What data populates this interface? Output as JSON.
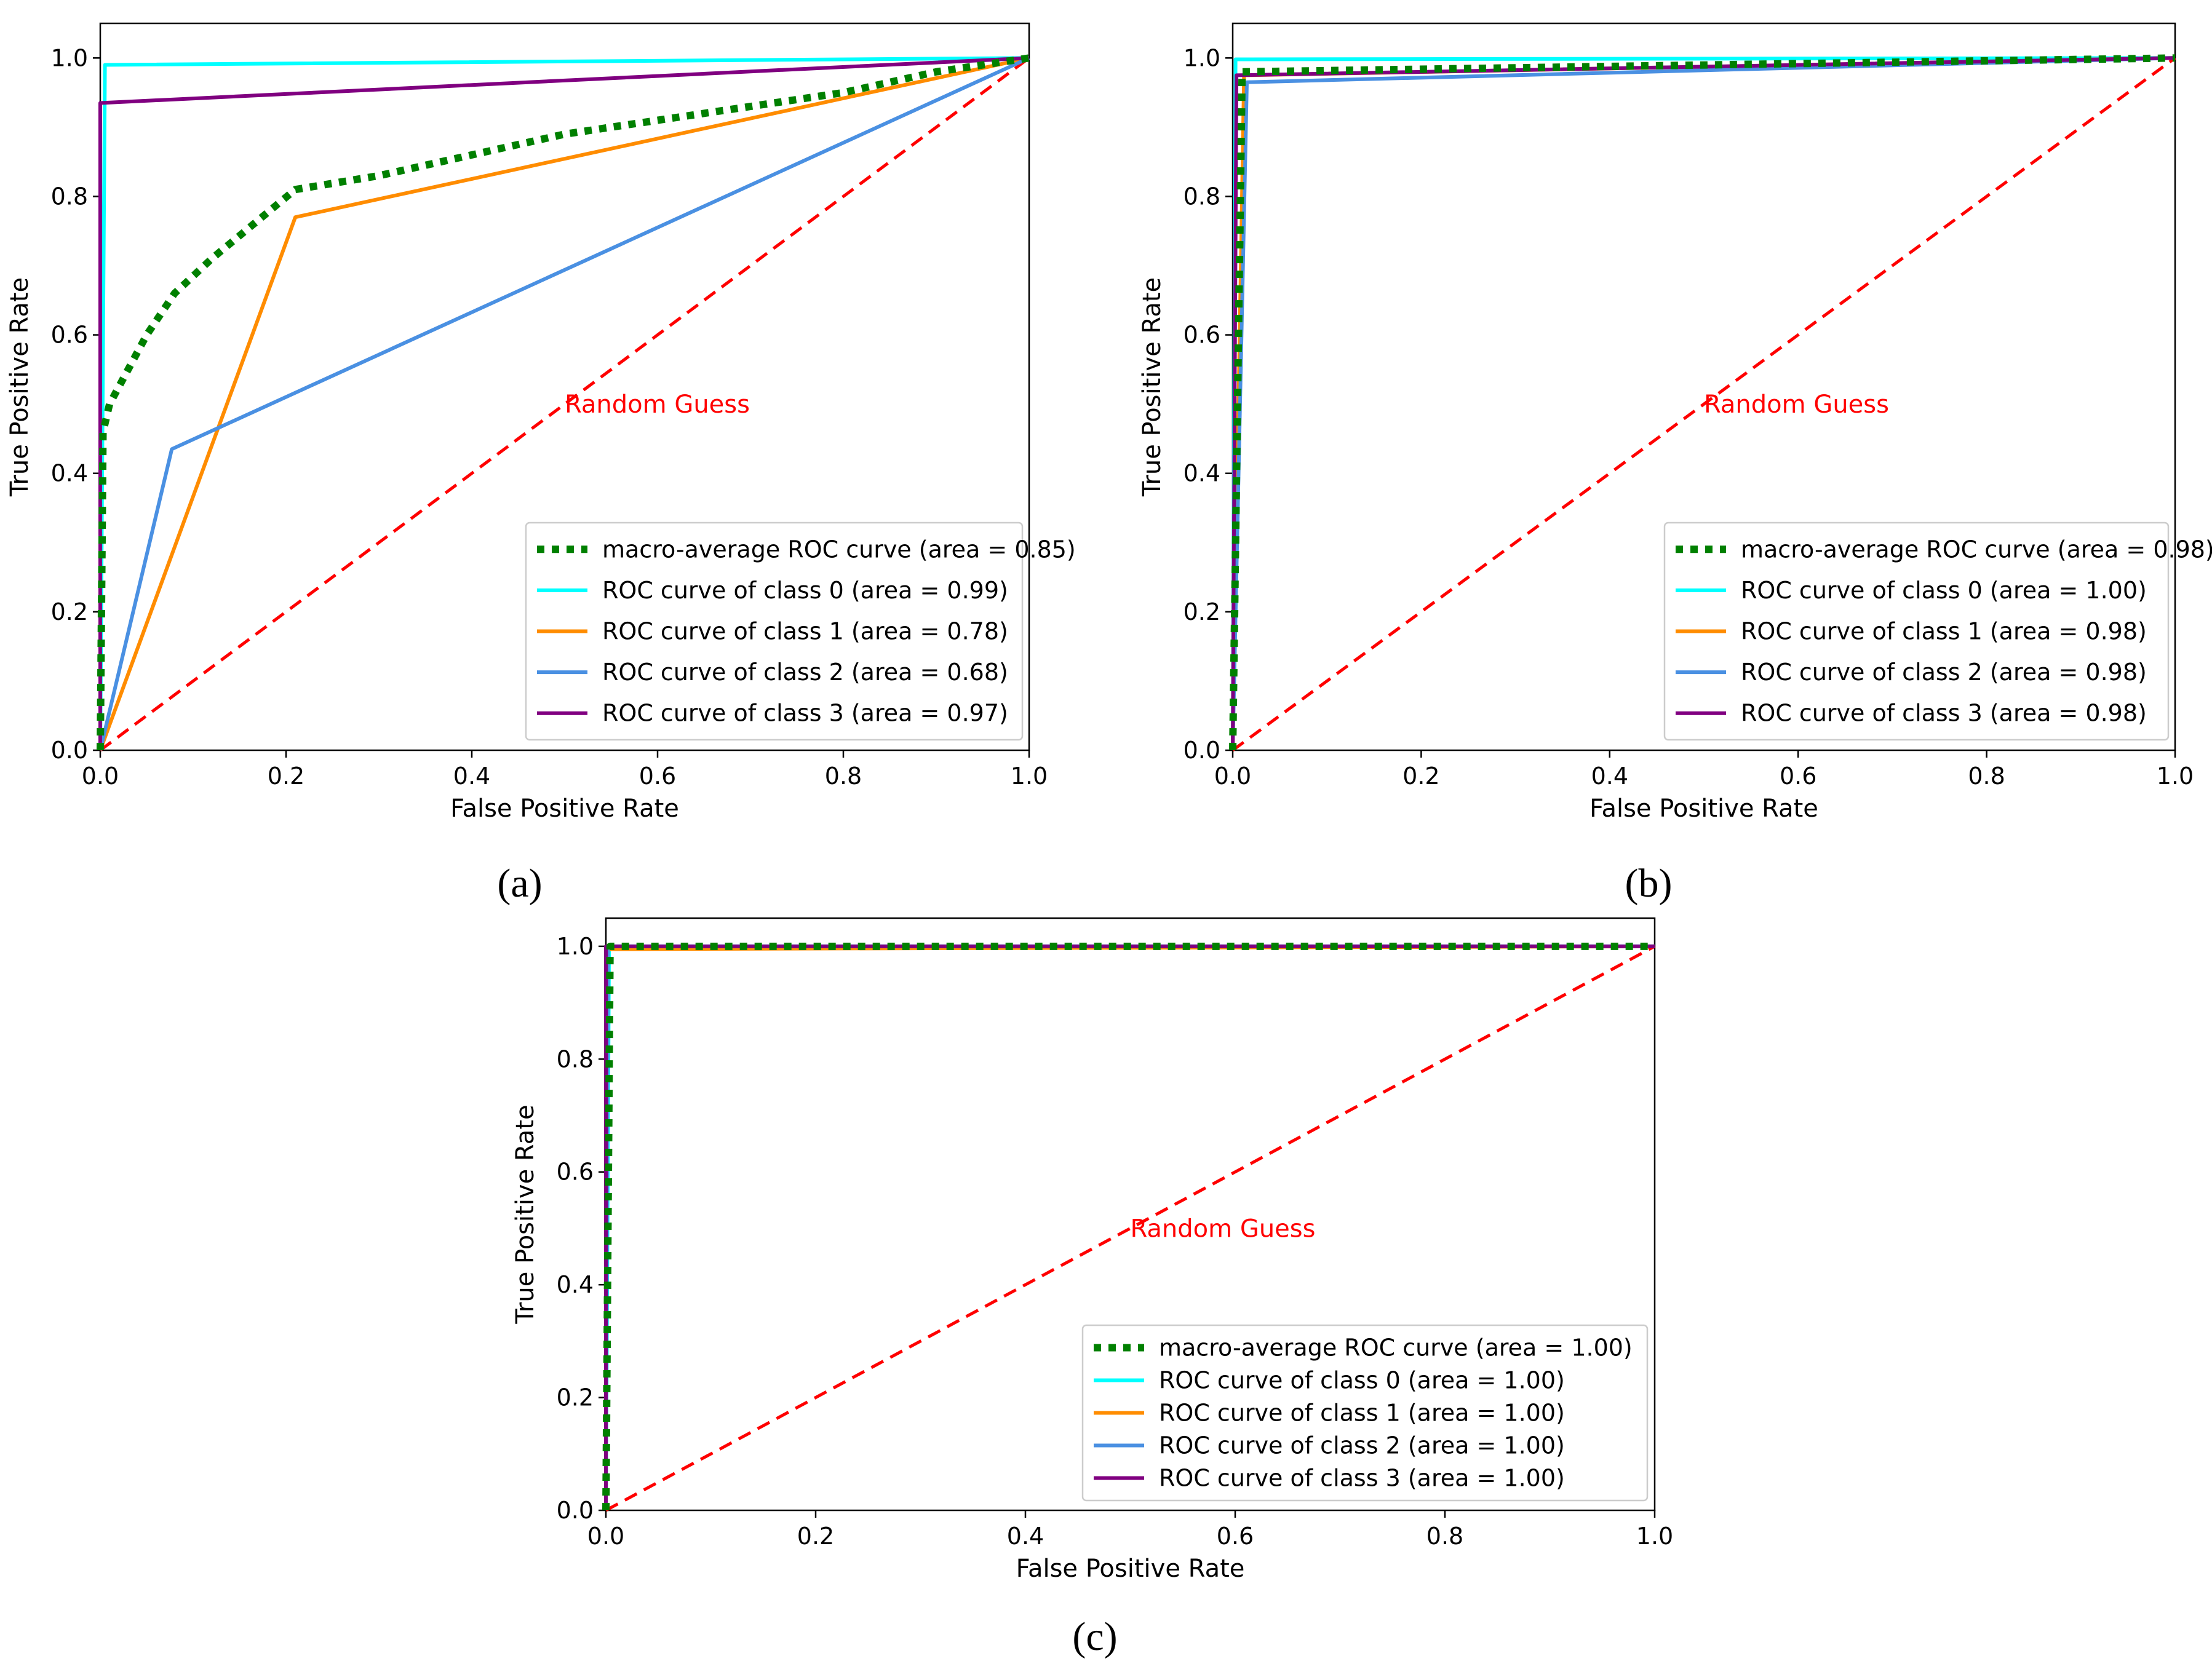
{
  "figure": {
    "panel_labels": [
      "(a)",
      "(b)",
      "(c)"
    ]
  },
  "chart_data": [
    {
      "panel": "(a)",
      "type": "line",
      "xlabel": "False Positive Rate",
      "ylabel": "True Positive Rate",
      "xlim": [
        0.0,
        1.0
      ],
      "ylim": [
        0.0,
        1.05
      ],
      "xticks": [
        "0.0",
        "0.2",
        "0.4",
        "0.6",
        "0.8",
        "1.0"
      ],
      "yticks": [
        "0.0",
        "0.2",
        "0.4",
        "0.6",
        "0.8",
        "1.0"
      ],
      "annotation": {
        "text": "Random Guess",
        "x": 0.5,
        "y": 0.5,
        "color": "#ff0000"
      },
      "legend_position": "lower-right",
      "series": [
        {
          "name": "macro-average ROC curve (area = 0.85)",
          "color": "#008000",
          "style": "dotted",
          "x": [
            0,
            0.003,
            0.01,
            0.05,
            0.08,
            0.12,
            0.21,
            0.3,
            0.4,
            0.5,
            0.6,
            0.7,
            0.8,
            0.9,
            1.0
          ],
          "y": [
            0,
            0.46,
            0.5,
            0.6,
            0.66,
            0.71,
            0.81,
            0.83,
            0.86,
            0.89,
            0.91,
            0.93,
            0.95,
            0.98,
            1.0
          ]
        },
        {
          "name": "ROC curve of class 0 (area = 0.99)",
          "color": "#00ffff",
          "style": "solid",
          "x": [
            0,
            0.005,
            1.0
          ],
          "y": [
            0,
            0.99,
            1.0
          ]
        },
        {
          "name": "ROC curve of class 1 (area = 0.78)",
          "color": "#ff8c00",
          "style": "solid",
          "x": [
            0,
            0.21,
            1.0
          ],
          "y": [
            0,
            0.77,
            1.0
          ]
        },
        {
          "name": "ROC curve of class 2 (area = 0.68)",
          "color": "#4a90e2",
          "style": "solid",
          "x": [
            0,
            0.077,
            1.0
          ],
          "y": [
            0,
            0.435,
            1.0
          ]
        },
        {
          "name": "ROC curve of class 3 (area = 0.97)",
          "color": "#800080",
          "style": "solid",
          "x": [
            0,
            0.0,
            1.0
          ],
          "y": [
            0,
            0.935,
            1.0
          ]
        }
      ]
    },
    {
      "panel": "(b)",
      "type": "line",
      "xlabel": "False Positive Rate",
      "ylabel": "True Positive Rate",
      "xlim": [
        0.0,
        1.0
      ],
      "ylim": [
        0.0,
        1.05
      ],
      "xticks": [
        "0.0",
        "0.2",
        "0.4",
        "0.6",
        "0.8",
        "1.0"
      ],
      "yticks": [
        "0.0",
        "0.2",
        "0.4",
        "0.6",
        "0.8",
        "1.0"
      ],
      "annotation": {
        "text": "Random Guess",
        "x": 0.5,
        "y": 0.5,
        "color": "#ff0000"
      },
      "legend_position": "lower-right",
      "series": [
        {
          "name": "macro-average ROC curve (area = 0.98)",
          "color": "#008000",
          "style": "dotted",
          "x": [
            0,
            0.01,
            1.0
          ],
          "y": [
            0,
            0.98,
            1.0
          ]
        },
        {
          "name": "ROC curve of class 0 (area = 1.00)",
          "color": "#00ffff",
          "style": "solid",
          "x": [
            0,
            0.003,
            1.0
          ],
          "y": [
            0,
            0.998,
            1.0
          ]
        },
        {
          "name": "ROC curve of class 1 (area = 0.98)",
          "color": "#ff8c00",
          "style": "solid",
          "x": [
            0,
            0.012,
            1.0
          ],
          "y": [
            0,
            0.975,
            1.0
          ]
        },
        {
          "name": "ROC curve of class 2 (area = 0.98)",
          "color": "#4a90e2",
          "style": "solid",
          "x": [
            0,
            0.015,
            1.0
          ],
          "y": [
            0,
            0.965,
            1.0
          ]
        },
        {
          "name": "ROC curve of class 3 (area = 0.98)",
          "color": "#800080",
          "style": "solid",
          "x": [
            0,
            0.004,
            1.0
          ],
          "y": [
            0,
            0.975,
            1.0
          ]
        }
      ]
    },
    {
      "panel": "(c)",
      "type": "line",
      "xlabel": "False Positive Rate",
      "ylabel": "True Positive Rate",
      "xlim": [
        0.0,
        1.0
      ],
      "ylim": [
        0.0,
        1.05
      ],
      "xticks": [
        "0.0",
        "0.2",
        "0.4",
        "0.6",
        "0.8",
        "1.0"
      ],
      "yticks": [
        "0.0",
        "0.2",
        "0.4",
        "0.6",
        "0.8",
        "1.0"
      ],
      "annotation": {
        "text": "Random Guess",
        "x": 0.5,
        "y": 0.5,
        "color": "#ff0000"
      },
      "legend_position": "lower-right",
      "series": [
        {
          "name": "macro-average ROC curve (area = 1.00)",
          "color": "#008000",
          "style": "dotted",
          "x": [
            0,
            0.004,
            1.0
          ],
          "y": [
            0,
            1.0,
            1.0
          ]
        },
        {
          "name": "ROC curve of class 0 (area = 1.00)",
          "color": "#00ffff",
          "style": "solid",
          "x": [
            0,
            0.003,
            1.0
          ],
          "y": [
            0,
            1.0,
            1.0
          ]
        },
        {
          "name": "ROC curve of class 1 (area = 1.00)",
          "color": "#ff8c00",
          "style": "solid",
          "x": [
            0,
            0.0,
            1.0
          ],
          "y": [
            0,
            0.995,
            1.0
          ]
        },
        {
          "name": "ROC curve of class 2 (area = 1.00)",
          "color": "#4a90e2",
          "style": "solid",
          "x": [
            0,
            0.002,
            1.0
          ],
          "y": [
            0,
            1.0,
            1.0
          ]
        },
        {
          "name": "ROC curve of class 3 (area = 1.00)",
          "color": "#800080",
          "style": "solid",
          "x": [
            0,
            0.0,
            1.0
          ],
          "y": [
            0,
            1.0,
            1.0
          ]
        }
      ]
    }
  ]
}
